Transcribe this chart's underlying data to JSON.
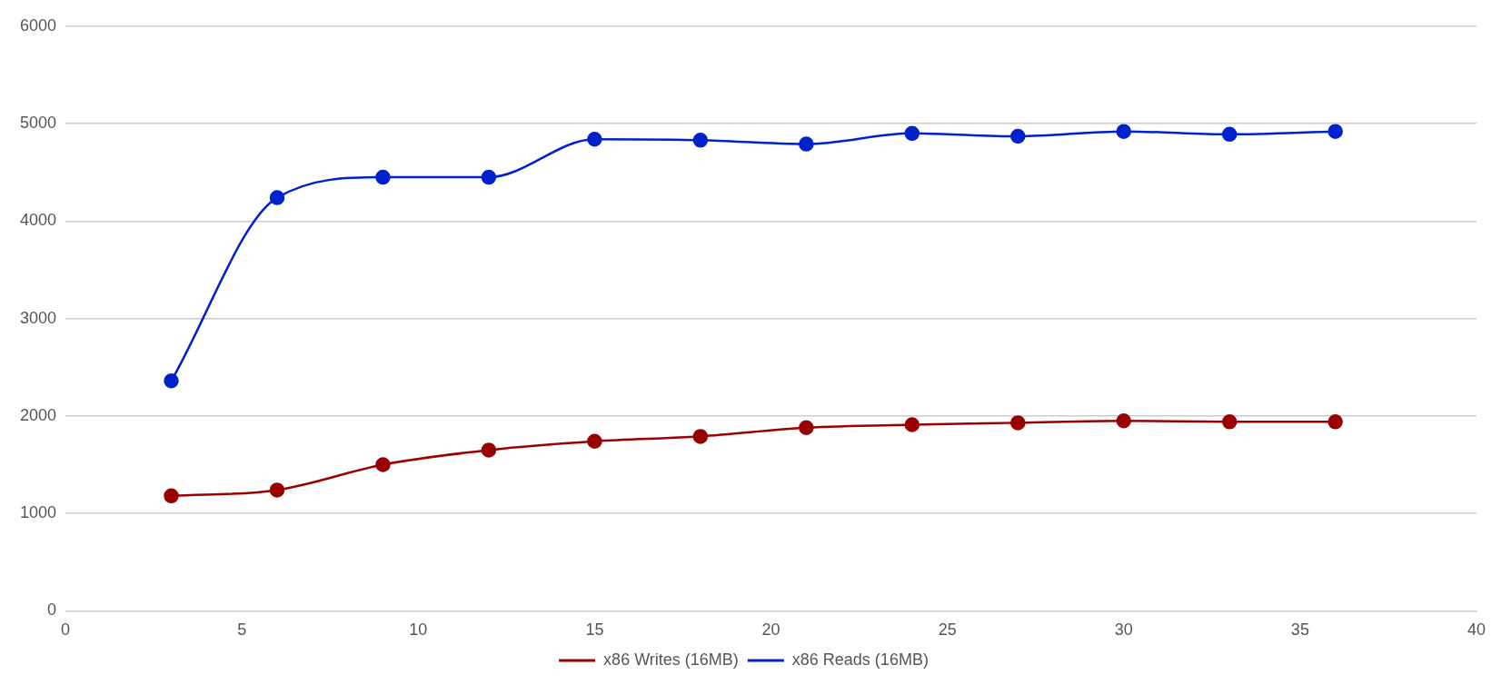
{
  "chart_data": {
    "type": "line",
    "x": [
      3,
      6,
      9,
      12,
      15,
      18,
      21,
      24,
      27,
      30,
      33,
      36
    ],
    "series": [
      {
        "name": "x86 Writes (16MB)",
        "color": "#990000",
        "values": [
          1180,
          1240,
          1500,
          1650,
          1740,
          1790,
          1880,
          1910,
          1930,
          1950,
          1940,
          1940
        ]
      },
      {
        "name": "x86 Reads (16MB)",
        "color": "#0022cc",
        "values": [
          2360,
          4240,
          4450,
          4450,
          4840,
          4830,
          4790,
          4900,
          4870,
          4920,
          4890,
          4920
        ]
      }
    ],
    "xlim": [
      0,
      40
    ],
    "xticks": [
      0,
      5,
      10,
      15,
      20,
      25,
      30,
      35,
      40
    ],
    "ylim": [
      0,
      6000
    ],
    "yticks": [
      0,
      1000,
      2000,
      3000,
      4000,
      5000,
      6000
    ],
    "grid": "y",
    "legend": "bottom",
    "marker": "circle",
    "line_style": "solid"
  }
}
